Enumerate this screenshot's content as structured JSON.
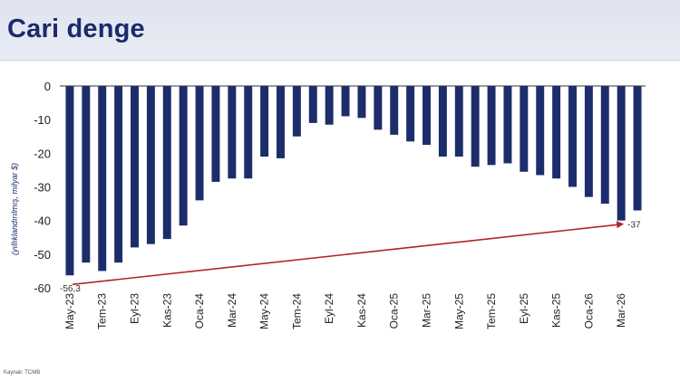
{
  "header": {
    "title": "Cari denge"
  },
  "footer": {
    "source": "Kaynak: TCMB"
  },
  "chart_data": {
    "type": "bar",
    "title": "Cari denge",
    "ylabel": "(yıllıklandırılmış, milyar $)",
    "ylim": [
      -60,
      0
    ],
    "yticks": [
      0,
      -10,
      -20,
      -30,
      -40,
      -50,
      -60
    ],
    "categories": [
      "May-23",
      "Haz-23",
      "Tem-23",
      "Ağu-23",
      "Eyl-23",
      "Eki-23",
      "Kas-23",
      "Ara-23",
      "Oca-24",
      "Şub-24",
      "Mar-24",
      "Nis-24",
      "May-24",
      "Haz-24",
      "Tem-24",
      "Ağu-24",
      "Eyl-24",
      "Eki-24",
      "Kas-24",
      "Ara-24",
      "Oca-25",
      "Şub-25",
      "Mar-25",
      "Nis-25",
      "May-25",
      "Haz-25",
      "Tem-25",
      "Ağu-25",
      "Eyl-25",
      "Eki-25",
      "Kas-25",
      "Ara-25",
      "Oca-26",
      "Şub-26",
      "Mar-26",
      "Nis-26"
    ],
    "tick_labels_shown": [
      "May-23",
      "Tem-23",
      "Eyl-23",
      "Kas-23",
      "Oca-24",
      "Mar-24",
      "May-24",
      "Tem-24",
      "Eyl-24",
      "Kas-24",
      "Oca-25",
      "Mar-25",
      "May-25",
      "Tem-25",
      "Eyl-25",
      "Kas-25",
      "Oca-26",
      "Mar-26"
    ],
    "values": [
      -56.3,
      -52.5,
      -55.0,
      -52.5,
      -48.0,
      -47.0,
      -45.5,
      -41.5,
      -34.0,
      -28.5,
      -27.5,
      -27.5,
      -21.0,
      -21.5,
      -15.0,
      -11.0,
      -11.5,
      -9.0,
      -9.5,
      -13.0,
      -14.5,
      -16.5,
      -17.5,
      -21.0,
      -21.0,
      -24.0,
      -23.5,
      -23.0,
      -25.5,
      -26.5,
      -27.5,
      -30.0,
      -33.0,
      -35.0,
      -40.0,
      -37.0
    ],
    "colors": {
      "bar": "#1b2d6b",
      "trend": "#b22424",
      "axis": "#333333"
    },
    "annotations": {
      "start_label": "-56,3",
      "end_label": "-37"
    },
    "trend_line": {
      "from_category": "May-23",
      "from_value": -59,
      "to_category": "Mar-26",
      "to_value": -41
    },
    "grid": false,
    "legend": "none"
  }
}
